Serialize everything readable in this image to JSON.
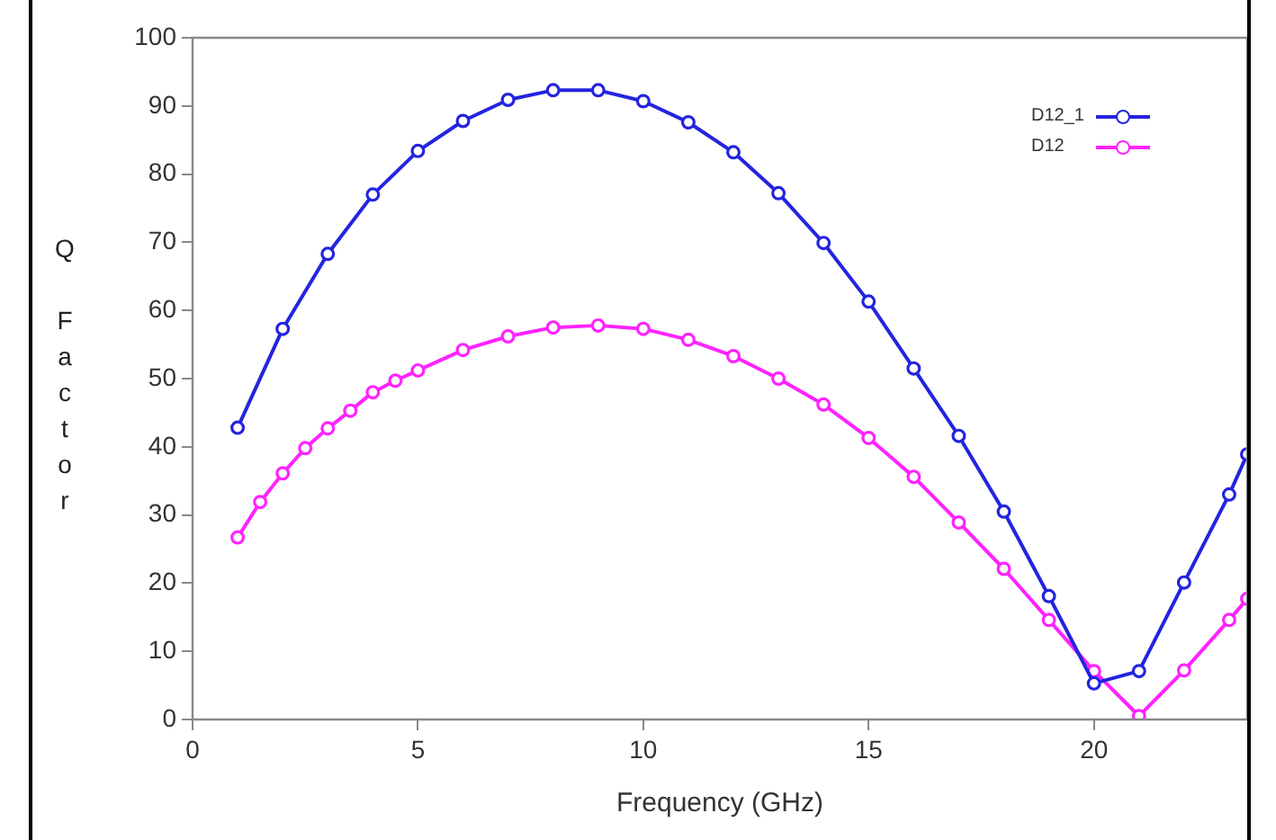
{
  "chart_data": {
    "type": "line",
    "xlabel": "Frequency (GHz)",
    "ylabel": "Q Factor",
    "xlim": [
      0,
      23.4
    ],
    "xticks": [
      0,
      5,
      10,
      15,
      20
    ],
    "ylim": [
      0,
      100
    ],
    "yticks": [
      0,
      10,
      20,
      30,
      40,
      50,
      60,
      70,
      80,
      90,
      100
    ],
    "grid": false,
    "legend": "top right",
    "marker": "circle",
    "line_style": "solid",
    "series": [
      {
        "name": "D12_1",
        "color": "#2424e0",
        "x": [
          1,
          2,
          3,
          4,
          5,
          6,
          7,
          8,
          9,
          10,
          11,
          12,
          13,
          14,
          15,
          16,
          17,
          18,
          19,
          20,
          21,
          22,
          23,
          23.4
        ],
        "values": [
          42.8,
          57.3,
          68.3,
          77,
          83.4,
          87.8,
          90.9,
          92.3,
          92.3,
          90.7,
          87.6,
          83.2,
          77.2,
          69.9,
          61.3,
          51.5,
          41.6,
          30.5,
          18.1,
          5.3,
          7.1,
          20.1,
          33,
          38.9
        ]
      },
      {
        "name": "D12",
        "color": "#ff22ff",
        "x": [
          1,
          1.5,
          2,
          2.5,
          3,
          3.5,
          4,
          4.5,
          5,
          6,
          7,
          8,
          9,
          10,
          11,
          12,
          13,
          14,
          15,
          16,
          17,
          18,
          19,
          20,
          21,
          22,
          23,
          23.4
        ],
        "values": [
          26.7,
          31.9,
          36.1,
          39.8,
          42.7,
          45.3,
          48,
          49.7,
          51.2,
          54.2,
          56.2,
          57.5,
          57.8,
          57.3,
          55.7,
          53.3,
          50,
          46.2,
          41.3,
          35.6,
          28.9,
          22.1,
          14.6,
          7.1,
          0.5,
          7.2,
          14.6,
          17.7
        ]
      }
    ]
  }
}
